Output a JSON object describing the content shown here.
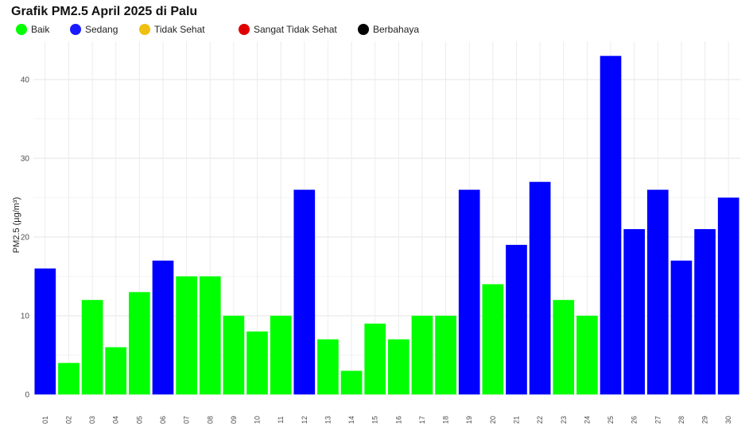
{
  "chart_data": {
    "type": "bar",
    "title": "Grafik PM2.5 April 2025 di Palu",
    "xlabel": "",
    "ylabel": "PM2.5 (µg/m³)",
    "ylim": [
      0,
      45
    ],
    "yticks": [
      0,
      10,
      20,
      30,
      40
    ],
    "grid": true,
    "legend_position": "top-left",
    "categories": [
      "01",
      "02",
      "03",
      "04",
      "05",
      "06",
      "07",
      "08",
      "09",
      "10",
      "11",
      "12",
      "13",
      "14",
      "15",
      "16",
      "17",
      "18",
      "19",
      "20",
      "21",
      "22",
      "23",
      "24",
      "25",
      "26",
      "27",
      "28",
      "29",
      "30"
    ],
    "values": [
      16,
      4,
      12,
      6,
      13,
      17,
      15,
      15,
      10,
      8,
      10,
      26,
      7,
      3,
      9,
      7,
      10,
      10,
      26,
      14,
      19,
      27,
      12,
      10,
      43,
      21,
      26,
      17,
      21,
      25
    ],
    "bar_category": [
      "Sedang",
      "Baik",
      "Baik",
      "Baik",
      "Baik",
      "Sedang",
      "Baik",
      "Baik",
      "Baik",
      "Baik",
      "Baik",
      "Sedang",
      "Baik",
      "Baik",
      "Baik",
      "Baik",
      "Baik",
      "Baik",
      "Sedang",
      "Baik",
      "Sedang",
      "Sedang",
      "Baik",
      "Baik",
      "Sedang",
      "Sedang",
      "Sedang",
      "Sedang",
      "Sedang",
      "Sedang"
    ],
    "legend": [
      {
        "name": "Baik",
        "color": "#00ff00"
      },
      {
        "name": "Sedang",
        "color": "#1a1aff"
      },
      {
        "name": "Tidak Sehat",
        "color": "#f0c010"
      },
      {
        "name": "Sangat Tidak Sehat",
        "color": "#e00000"
      },
      {
        "name": "Berbahaya",
        "color": "#000000"
      }
    ],
    "colors": {
      "Baik": "#00ff00",
      "Sedang": "#0000ff"
    }
  }
}
